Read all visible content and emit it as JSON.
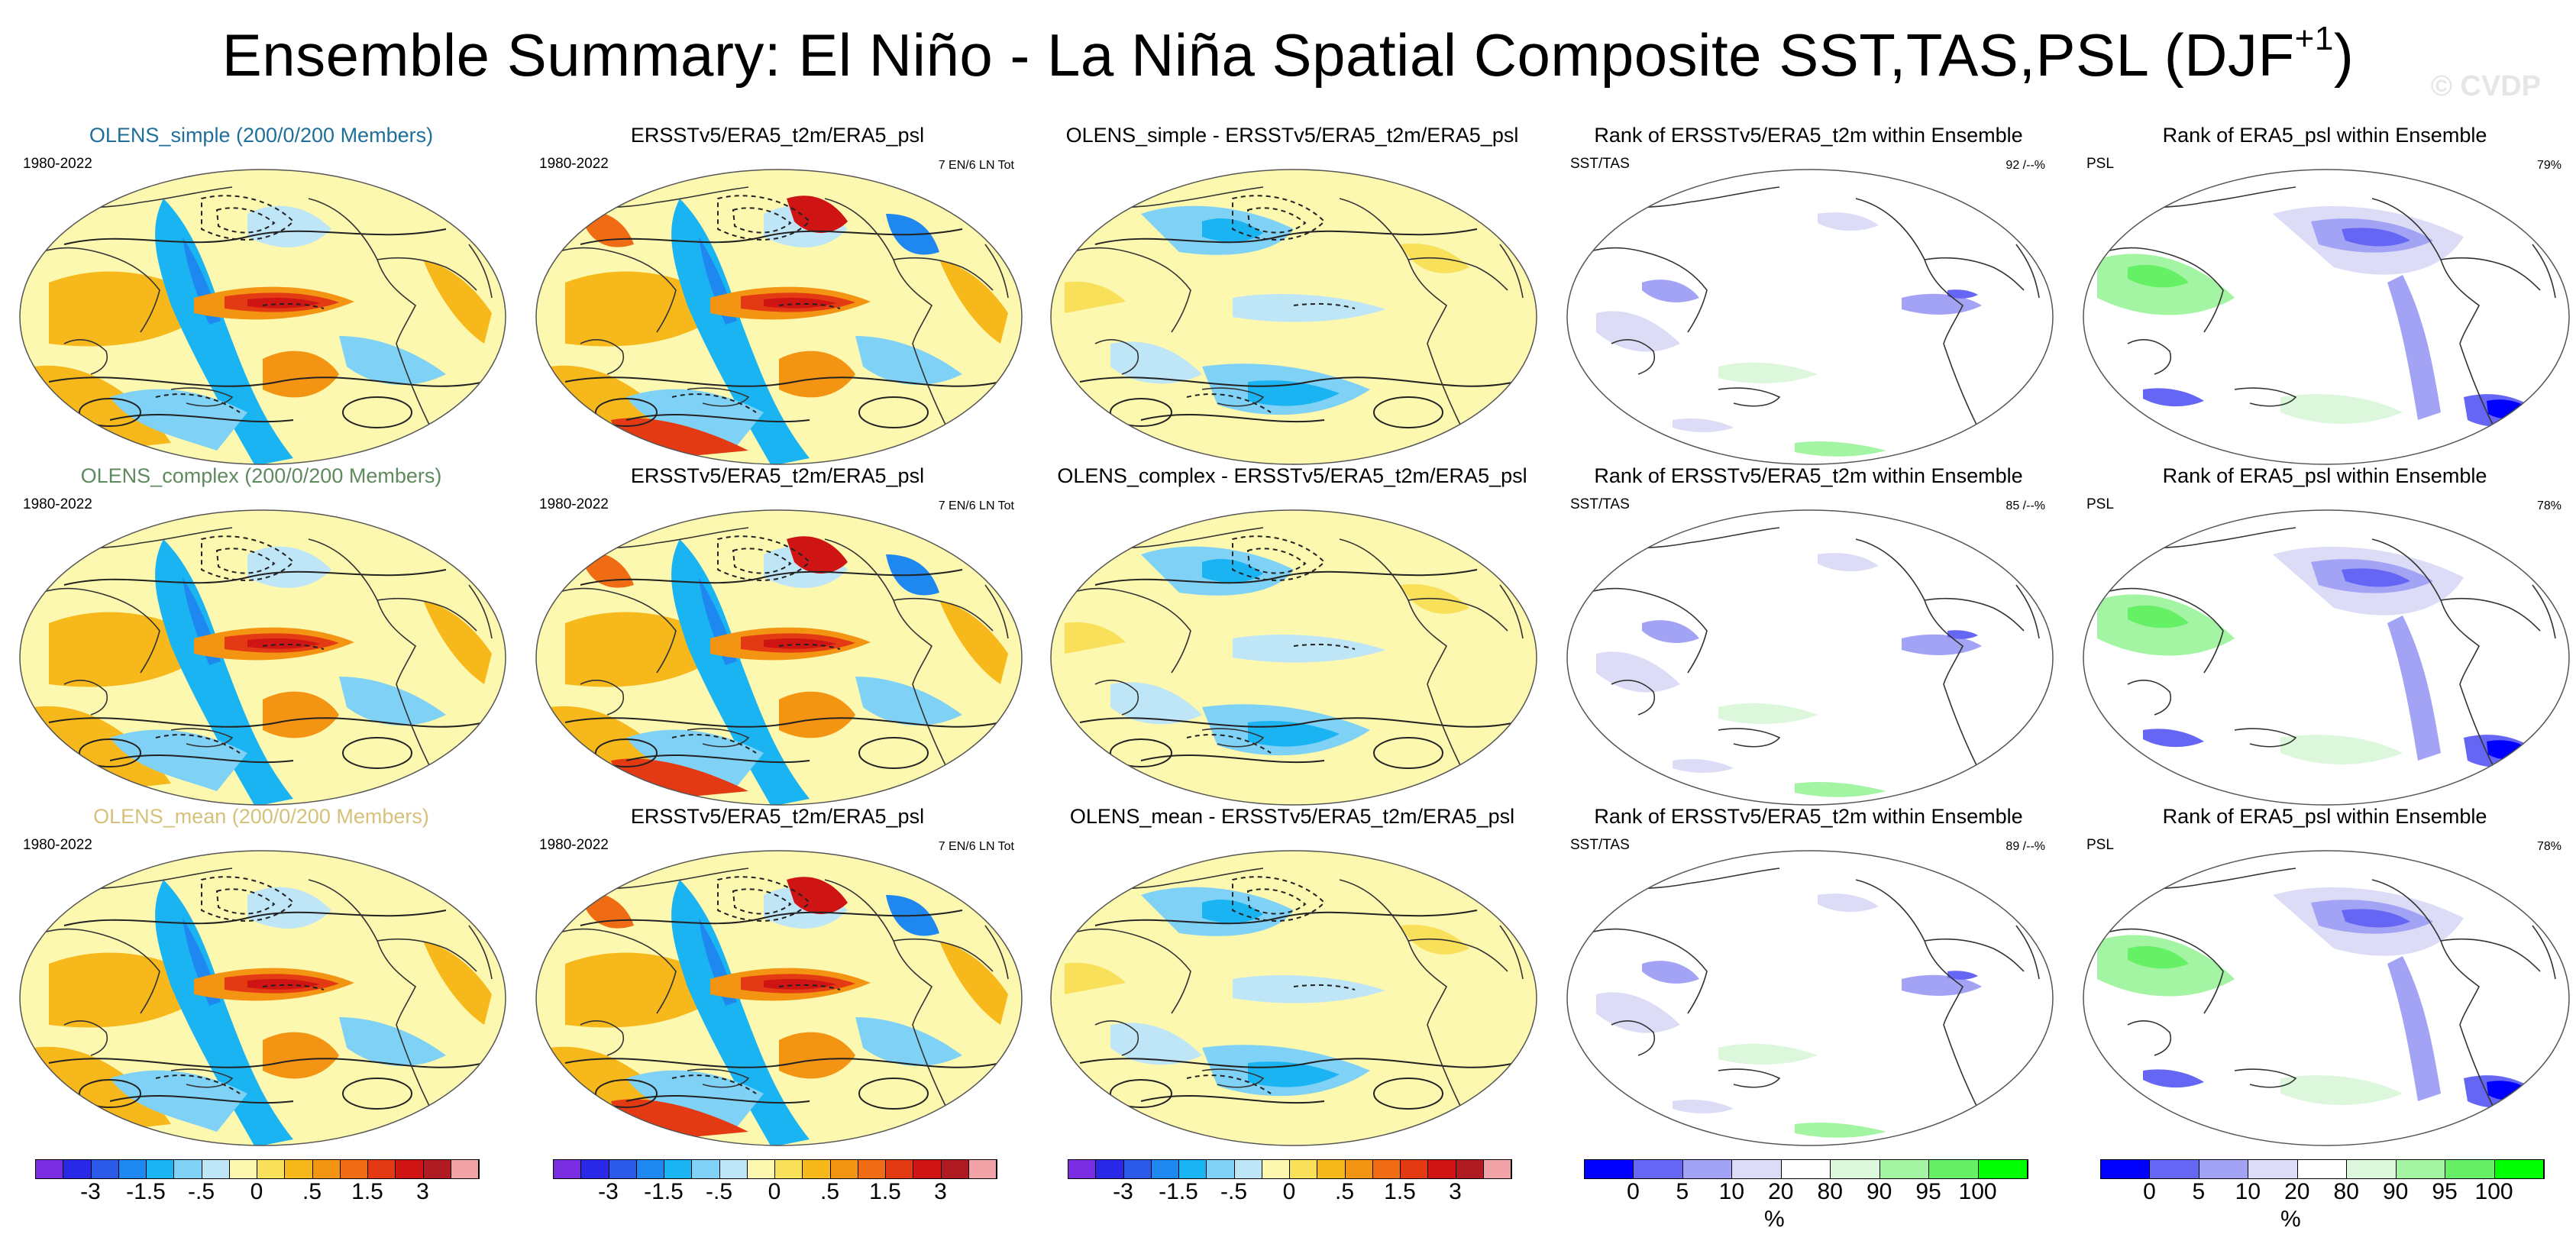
{
  "title": {
    "main": "Ensemble Summary: El Niño - La Niña Spatial Composite SST,TAS,PSL (DJF",
    "superscript": "+1",
    "close": ")"
  },
  "watermark": "© CVDP",
  "colors": {
    "simple_title": "#1f6f9a",
    "complex_title": "#5e8a5e",
    "mean_title": "#d6c17a"
  },
  "rows": [
    {
      "ensemble": {
        "title": "OLENS_simple (200/0/200 Members)",
        "left_label": "1980-2022"
      },
      "observed": {
        "title": "ERSSTv5/ERA5_t2m/ERA5_psl",
        "left_label": "1980-2022",
        "right_label": "7 EN/6 LN Tot"
      },
      "difference": {
        "title": "OLENS_simple - ERSSTv5/ERA5_t2m/ERA5_psl"
      },
      "rank_sst": {
        "title": "Rank of ERSSTv5/ERA5_t2m within Ensemble",
        "left_label": "SST/TAS",
        "right_label": "92 /--%"
      },
      "rank_psl": {
        "title": "Rank of ERA5_psl within Ensemble",
        "left_label": "PSL",
        "right_label": "79%"
      }
    },
    {
      "ensemble": {
        "title": "OLENS_complex (200/0/200 Members)",
        "left_label": "1980-2022"
      },
      "observed": {
        "title": "ERSSTv5/ERA5_t2m/ERA5_psl",
        "left_label": "1980-2022",
        "right_label": "7 EN/6 LN Tot"
      },
      "difference": {
        "title": "OLENS_complex - ERSSTv5/ERA5_t2m/ERA5_psl"
      },
      "rank_sst": {
        "title": "Rank of ERSSTv5/ERA5_t2m within Ensemble",
        "left_label": "SST/TAS",
        "right_label": "85 /--%"
      },
      "rank_psl": {
        "title": "Rank of ERA5_psl within Ensemble",
        "left_label": "PSL",
        "right_label": "78%"
      }
    },
    {
      "ensemble": {
        "title": "OLENS_mean (200/0/200 Members)",
        "left_label": "1980-2022"
      },
      "observed": {
        "title": "ERSSTv5/ERA5_t2m/ERA5_psl",
        "left_label": "1980-2022",
        "right_label": "7 EN/6 LN Tot"
      },
      "difference": {
        "title": "OLENS_mean - ERSSTv5/ERA5_t2m/ERA5_psl"
      },
      "rank_sst": {
        "title": "Rank of ERSSTv5/ERA5_t2m within Ensemble",
        "left_label": "SST/TAS",
        "right_label": "89 /--%"
      },
      "rank_psl": {
        "title": "Rank of ERA5_psl within Ensemble",
        "left_label": "PSL",
        "right_label": "78%"
      }
    }
  ],
  "colorbars": {
    "anomaly": {
      "ticks": [
        "-3",
        "-1.5",
        "-.5",
        "0",
        ".5",
        "1.5",
        "3"
      ],
      "colors": [
        "#7a2de0",
        "#2828e6",
        "#2b59e8",
        "#1e88f0",
        "#1ab4f2",
        "#7fd1f5",
        "#bfe6f7",
        "#fdf8b0",
        "#f8e05a",
        "#f6b81a",
        "#f39412",
        "#ef6b14",
        "#e43a14",
        "#cf1414",
        "#b01a22",
        "#f2a3a8"
      ]
    },
    "rank": {
      "ticks": [
        "0",
        "5",
        "10",
        "20",
        "80",
        "90",
        "95",
        "100"
      ],
      "unit": "%",
      "colors": [
        "#0000ff",
        "#6666f5",
        "#a3a3f5",
        "#dcdcf7",
        "#ffffff",
        "#dcf7dc",
        "#a3f5a3",
        "#66f066",
        "#00ff00"
      ]
    }
  }
}
